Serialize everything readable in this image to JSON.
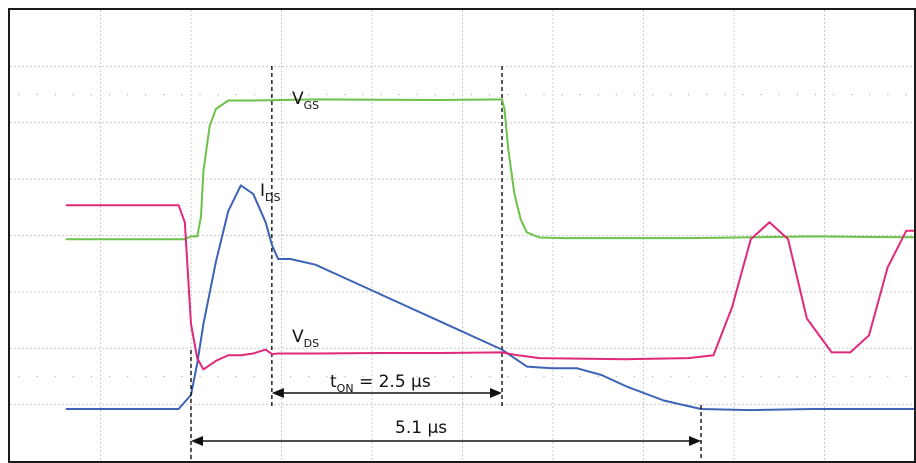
{
  "chart_data": {
    "type": "line",
    "title": "",
    "xlabel": "",
    "ylabel": "",
    "grid": true,
    "x_unit": "µs",
    "xlim": [
      -1.0,
      7.0
    ],
    "ylim": [
      0,
      7.0
    ],
    "series": [
      {
        "name": "VGS",
        "label_main": "V",
        "label_sub": "GS",
        "color": "#6cc24a",
        "x": [
          -1.0,
          -0.05,
          0.0,
          0.05,
          0.08,
          0.1,
          0.15,
          0.2,
          0.3,
          0.5,
          1.0,
          2.0,
          2.5,
          2.52,
          2.55,
          2.6,
          2.65,
          2.7,
          2.8,
          3.0,
          4.0,
          5.0,
          6.0,
          7.0
        ],
        "values": [
          3.0,
          3.0,
          3.05,
          3.05,
          3.4,
          4.2,
          5.0,
          5.3,
          5.45,
          5.45,
          5.47,
          5.46,
          5.47,
          5.3,
          4.6,
          3.8,
          3.35,
          3.12,
          3.03,
          3.02,
          3.02,
          3.05,
          3.03,
          3.06
        ]
      },
      {
        "name": "IDS",
        "label_main": "I",
        "label_sub": "DS",
        "color": "#3c63b4",
        "x": [
          -1.0,
          -0.1,
          0.0,
          0.05,
          0.1,
          0.2,
          0.3,
          0.4,
          0.5,
          0.6,
          0.65,
          0.7,
          0.8,
          1.0,
          1.2,
          1.5,
          2.0,
          2.5,
          2.6,
          2.7,
          2.9,
          3.1,
          3.3,
          3.5,
          3.8,
          4.1,
          4.5,
          5.0,
          6.0,
          7.0
        ],
        "values": [
          0.0,
          0.0,
          0.25,
          0.8,
          1.5,
          2.6,
          3.5,
          3.95,
          3.8,
          3.3,
          2.9,
          2.65,
          2.65,
          2.55,
          2.35,
          2.05,
          1.55,
          1.05,
          0.9,
          0.75,
          0.72,
          0.72,
          0.6,
          0.4,
          0.15,
          0.0,
          -0.02,
          0.0,
          0.0,
          0.0
        ]
      },
      {
        "name": "VDS",
        "label_main": "V",
        "label_sub": "DS",
        "color": "#e0297a",
        "x": [
          -1.0,
          -0.1,
          -0.05,
          0.0,
          0.05,
          0.1,
          0.2,
          0.3,
          0.4,
          0.5,
          0.6,
          0.65,
          0.7,
          1.0,
          1.5,
          2.0,
          2.5,
          2.6,
          2.8,
          3.5,
          4.0,
          4.2,
          4.35,
          4.5,
          4.65,
          4.8,
          4.95,
          5.15,
          5.3,
          5.45,
          5.6,
          5.75,
          5.9,
          6.05,
          6.25,
          6.4,
          6.55,
          6.75,
          6.9,
          7.0
        ],
        "values": [
          3.6,
          3.6,
          3.3,
          1.5,
          0.9,
          0.7,
          0.85,
          0.95,
          0.95,
          0.98,
          1.05,
          0.97,
          0.98,
          0.98,
          0.99,
          0.99,
          1.0,
          0.96,
          0.9,
          0.88,
          0.9,
          0.95,
          1.8,
          3.0,
          3.3,
          3.0,
          1.6,
          1.0,
          1.0,
          1.3,
          2.5,
          3.15,
          3.15,
          2.4,
          1.1,
          1.0,
          1.1,
          1.8,
          2.0,
          1.9
        ]
      }
    ],
    "markers": [
      {
        "x": 0.65
      },
      {
        "x": 2.5
      }
    ],
    "annotations": [
      {
        "text_main": "t",
        "text_sub": "ON",
        "text_rest": " = 2.5 µs",
        "x_from": 0.65,
        "x_to": 2.5
      },
      {
        "text_main": "5.1 µs",
        "x_from": 0.0,
        "x_to": 4.1
      }
    ]
  }
}
